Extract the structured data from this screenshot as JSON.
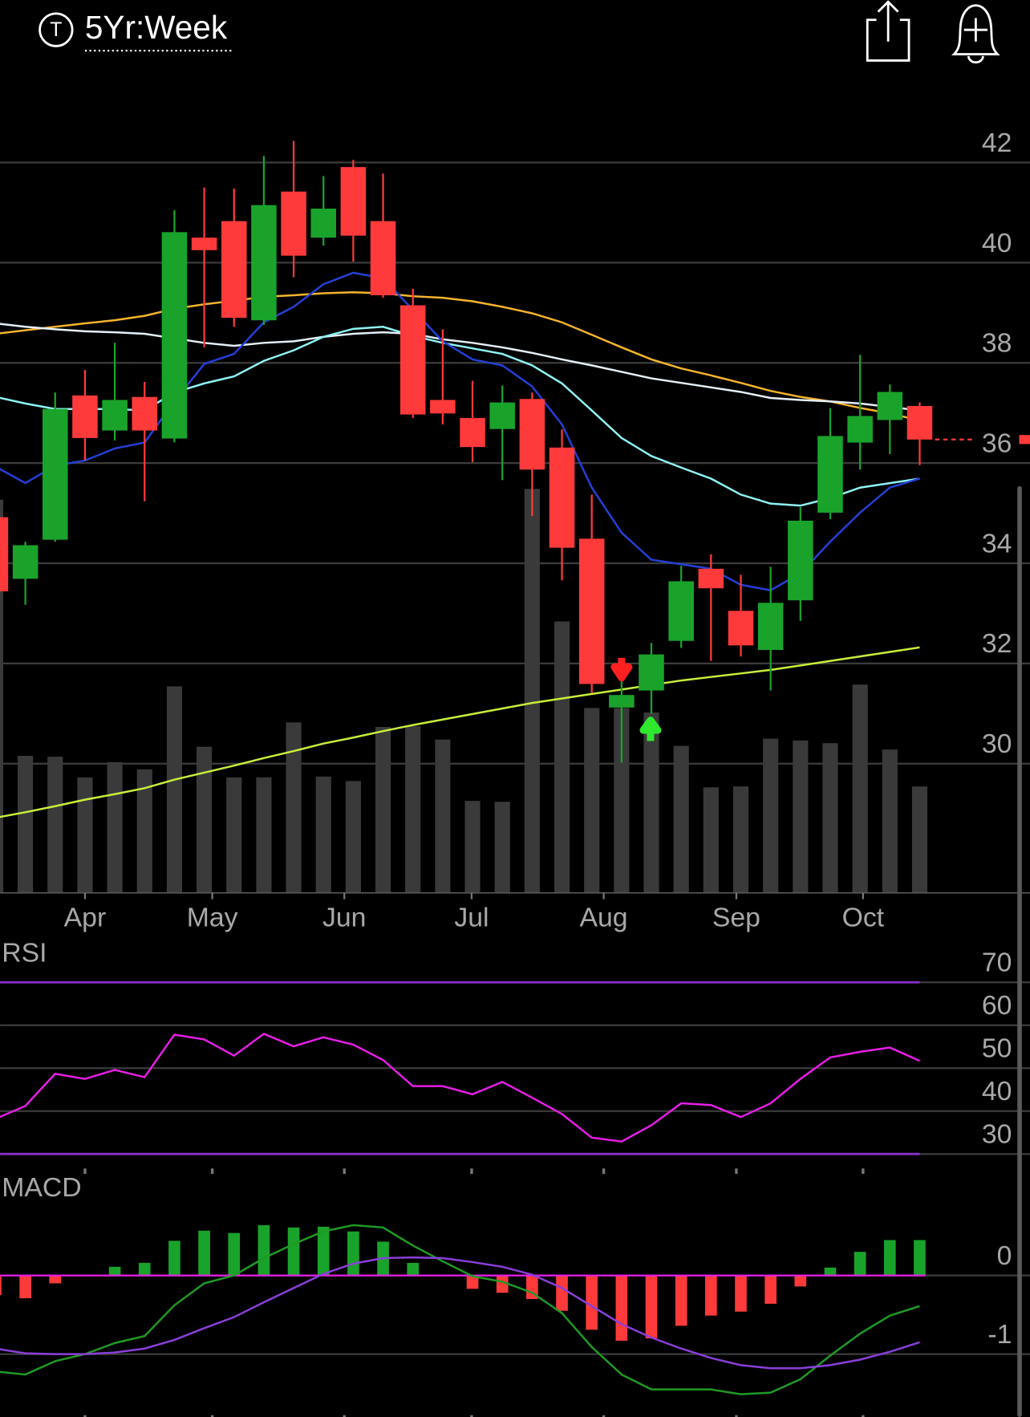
{
  "header": {
    "icon_letter": "T",
    "title": "5Yr:Week"
  },
  "chart_data": [
    {
      "type": "candlestick",
      "categories": [
        null,
        null,
        null,
        null,
        null,
        null,
        null,
        null,
        null,
        null,
        null,
        null,
        null,
        null,
        null,
        null,
        null,
        null,
        null,
        null,
        null,
        null,
        null,
        null,
        null,
        null,
        null,
        null,
        null,
        null,
        null,
        null
      ],
      "open": [
        34.92,
        33.69,
        34.47,
        37.35,
        36.65,
        37.32,
        36.49,
        40.5,
        40.83,
        38.85,
        41.42,
        40.5,
        41.91,
        40.83,
        39.15,
        37.26,
        36.9,
        36.68,
        37.28,
        36.31,
        34.49,
        31.12,
        31.46,
        32.45,
        33.89,
        33.05,
        32.27,
        33.26,
        35.01,
        36.41,
        36.86,
        37.14
      ],
      "high": [
        35.0,
        34.43,
        37.41,
        37.86,
        38.4,
        37.62,
        41.05,
        41.5,
        41.48,
        42.13,
        42.43,
        41.73,
        42.05,
        41.78,
        39.48,
        38.67,
        37.64,
        37.55,
        37.41,
        36.67,
        35.37,
        31.73,
        32.41,
        33.95,
        34.18,
        33.77,
        33.93,
        35.12,
        37.1,
        38.16,
        37.57,
        37.21
      ],
      "low": [
        33.3,
        33.17,
        34.43,
        36.05,
        36.45,
        35.24,
        36.41,
        38.31,
        38.72,
        38.76,
        39.71,
        40.34,
        40.02,
        39.3,
        36.9,
        36.77,
        36.02,
        35.66,
        34.94,
        33.66,
        31.41,
        30.02,
        31.0,
        32.31,
        32.05,
        32.14,
        31.46,
        32.85,
        34.88,
        35.87,
        36.18,
        35.96
      ],
      "close": [
        33.44,
        34.36,
        37.08,
        36.5,
        37.26,
        36.65,
        40.61,
        40.25,
        38.9,
        41.15,
        40.14,
        41.08,
        40.54,
        39.35,
        36.97,
        36.99,
        36.32,
        37.21,
        35.87,
        34.31,
        31.59,
        31.37,
        32.18,
        33.64,
        33.5,
        32.36,
        33.21,
        34.85,
        36.54,
        36.94,
        37.42,
        36.47
      ],
      "up_color": "#1aa32a",
      "down_color": "#fe3a3a",
      "volume": [
        436,
        152,
        151,
        128,
        145,
        137,
        229,
        162,
        128,
        128,
        189,
        129,
        124,
        184,
        185,
        170,
        102,
        101,
        448,
        301,
        205,
        205,
        200,
        163,
        117,
        118,
        171,
        169,
        166,
        231,
        159,
        118
      ],
      "vlim": [
        0,
        880
      ],
      "volume_color": "#3a3a3a",
      "series": [
        {
          "color": "#c6ef3b",
          "values": [
            28.92,
            29.03,
            29.15,
            29.28,
            29.39,
            29.51,
            29.68,
            29.82,
            29.96,
            30.11,
            30.25,
            30.4,
            30.52,
            30.65,
            30.77,
            30.88,
            30.99,
            31.1,
            31.21,
            31.3,
            31.39,
            31.48,
            31.57,
            31.66,
            31.73,
            31.8,
            31.87,
            31.96,
            32.05,
            32.14,
            32.23,
            32.32
          ]
        },
        {
          "color": "#f5b42c",
          "values": [
            38.58,
            38.65,
            38.72,
            38.79,
            38.85,
            38.94,
            39.08,
            39.17,
            39.24,
            39.32,
            39.35,
            39.39,
            39.41,
            39.39,
            39.33,
            39.3,
            39.23,
            39.12,
            38.99,
            38.81,
            38.56,
            38.31,
            38.07,
            37.89,
            37.75,
            37.6,
            37.44,
            37.32,
            37.23,
            37.1,
            36.99,
            36.85
          ]
        },
        {
          "color": "#e4f0fa",
          "values": [
            38.79,
            38.72,
            38.67,
            38.63,
            38.61,
            38.58,
            38.49,
            38.4,
            38.34,
            38.4,
            38.43,
            38.52,
            38.58,
            38.61,
            38.58,
            38.47,
            38.4,
            38.31,
            38.2,
            38.07,
            37.95,
            37.82,
            37.69,
            37.6,
            37.51,
            37.42,
            37.3,
            37.26,
            37.23,
            37.19,
            37.12,
            37.05
          ]
        },
        {
          "color": "#8ff4f4",
          "values": [
            37.32,
            37.19,
            37.08,
            37.08,
            37.08,
            37.05,
            37.41,
            37.59,
            37.73,
            38.04,
            38.25,
            38.52,
            38.68,
            38.72,
            38.54,
            38.4,
            38.29,
            38.18,
            37.95,
            37.59,
            37.05,
            36.5,
            36.14,
            35.91,
            35.69,
            35.37,
            35.19,
            35.15,
            35.3,
            35.51,
            35.6,
            35.69
          ]
        },
        {
          "color": "#2440d8",
          "values": [
            35.93,
            35.6,
            35.95,
            36.05,
            36.29,
            36.41,
            37.23,
            37.98,
            38.18,
            38.81,
            39.12,
            39.57,
            39.8,
            39.69,
            39.06,
            38.43,
            38.07,
            37.95,
            37.53,
            36.77,
            35.51,
            34.61,
            34.07,
            33.98,
            33.89,
            33.57,
            33.46,
            33.8,
            34.43,
            35.01,
            35.51,
            35.69
          ]
        }
      ],
      "xlim": [
        0.15,
        34.7
      ],
      "xticks": [
        {
          "value": 3,
          "label": "Apr"
        },
        {
          "value": 7.27,
          "label": "May"
        },
        {
          "value": 11.7,
          "label": "Jun"
        },
        {
          "value": 15.97,
          "label": "Jul"
        },
        {
          "value": 20.4,
          "label": "Aug"
        },
        {
          "value": 24.85,
          "label": "Sep"
        },
        {
          "value": 29.1,
          "label": "Oct"
        }
      ],
      "ylim": [
        27.42,
        43.26
      ],
      "yticks": [
        30,
        32,
        34,
        36,
        38,
        40,
        42
      ],
      "grid": true
    },
    {
      "type": "line",
      "title": "RSI",
      "ylim": [
        26.2,
        79.9
      ],
      "yticks": [
        30,
        40,
        50,
        60,
        70
      ],
      "levels": [
        30,
        70
      ],
      "level_color": "#8b2fc9",
      "grid": true,
      "series": [
        {
          "color": "#e61ee6",
          "values": [
            38.2,
            41.2,
            48.7,
            47.5,
            49.6,
            47.9,
            57.8,
            56.7,
            52.9,
            58.0,
            55.1,
            57.2,
            55.5,
            51.9,
            45.8,
            45.8,
            43.9,
            46.8,
            43.1,
            39.3,
            33.8,
            32.9,
            36.7,
            41.8,
            41.4,
            38.6,
            41.8,
            47.5,
            52.5,
            53.8,
            54.8,
            51.7
          ]
        }
      ]
    },
    {
      "type": "macd",
      "title": "MACD",
      "ylim": [
        -1.8,
        1.28
      ],
      "yticks": [
        -1,
        0
      ],
      "grid": true,
      "zero_color": "#e61ee6",
      "up_color": "#1aa32a",
      "down_color": "#fe3a3a",
      "histogram": [
        -0.25,
        -0.29,
        -0.1,
        0,
        0.11,
        0.16,
        0.44,
        0.57,
        0.54,
        0.64,
        0.61,
        0.62,
        0.56,
        0.43,
        0.16,
        0,
        -0.17,
        -0.22,
        -0.3,
        -0.45,
        -0.69,
        -0.83,
        -0.8,
        -0.64,
        -0.51,
        -0.46,
        -0.36,
        -0.14,
        0.1,
        0.3,
        0.45,
        0.45
      ],
      "series": [
        {
          "color": "#1f9a24",
          "values": [
            -1.22,
            -1.26,
            -1.09,
            -1.0,
            -0.86,
            -0.77,
            -0.38,
            -0.1,
            0,
            0.22,
            0.4,
            0.56,
            0.64,
            0.61,
            0.38,
            0.18,
            -0.01,
            -0.08,
            -0.22,
            -0.48,
            -0.91,
            -1.26,
            -1.45,
            -1.45,
            -1.45,
            -1.51,
            -1.49,
            -1.32,
            -1.02,
            -0.74,
            -0.51,
            -0.39
          ]
        },
        {
          "color": "#8a3fd9",
          "values": [
            -0.93,
            -0.99,
            -1.0,
            -1.0,
            -0.98,
            -0.93,
            -0.82,
            -0.67,
            -0.53,
            -0.34,
            -0.16,
            0.02,
            0.15,
            0.22,
            0.23,
            0.22,
            0.17,
            0.11,
            0.01,
            -0.16,
            -0.39,
            -0.62,
            -0.79,
            -0.93,
            -1.05,
            -1.14,
            -1.18,
            -1.18,
            -1.14,
            -1.07,
            -0.97,
            -0.85
          ]
        }
      ]
    }
  ]
}
